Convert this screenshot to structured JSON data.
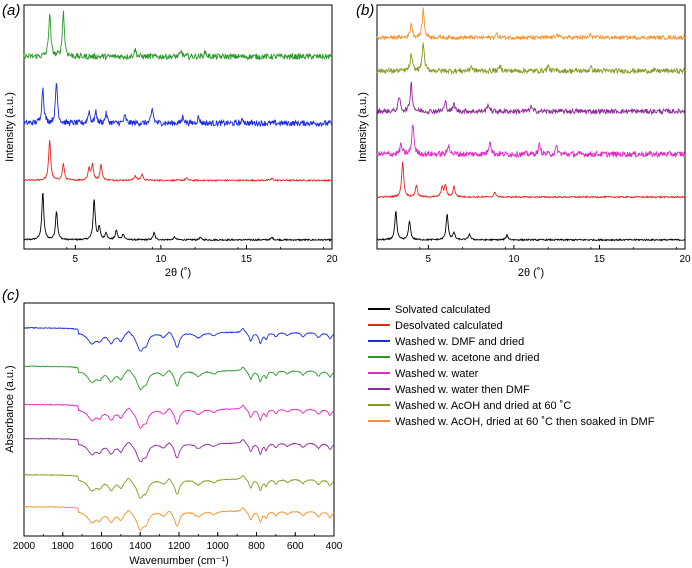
{
  "chart_data": [
    {
      "panel": "(a)",
      "type": "line",
      "title": "",
      "xlabel": "2θ (˚)",
      "ylabel": "Intensity (a.u.)",
      "xlim": [
        2,
        20
      ],
      "xticks": [
        5,
        10,
        15,
        20
      ],
      "yticks": false,
      "grid": false,
      "series": [
        {
          "name": "Solvated calculated",
          "color": "#000000",
          "baseline": 0.03,
          "noise": 0.003,
          "peaks": [
            [
              3.1,
              0.2
            ],
            [
              3.9,
              0.12
            ],
            [
              6.1,
              0.17
            ],
            [
              6.4,
              0.05
            ],
            [
              6.8,
              0.03
            ],
            [
              7.4,
              0.04
            ],
            [
              7.8,
              0.025
            ],
            [
              9.6,
              0.03
            ],
            [
              10.8,
              0.012
            ],
            [
              12.3,
              0.01
            ],
            [
              16.5,
              0.01
            ]
          ]
        },
        {
          "name": "Desolvated calculated",
          "color": "#e8251f",
          "baseline": 0.28,
          "noise": 0.003,
          "peaks": [
            [
              3.5,
              0.17
            ],
            [
              4.3,
              0.07
            ],
            [
              5.8,
              0.05
            ],
            [
              6.0,
              0.065
            ],
            [
              6.5,
              0.065
            ],
            [
              8.5,
              0.02
            ],
            [
              8.9,
              0.025
            ],
            [
              11.5,
              0.01
            ],
            [
              16.5,
              0.008
            ]
          ]
        },
        {
          "name": "Washed w. DMF and dried",
          "color": "#1a2be0",
          "baseline": 0.52,
          "noise": 0.012,
          "peaks": [
            [
              3.1,
              0.15
            ],
            [
              3.9,
              0.17
            ],
            [
              5.8,
              0.05
            ],
            [
              6.2,
              0.045
            ],
            [
              6.8,
              0.04
            ],
            [
              7.9,
              0.03
            ],
            [
              9.5,
              0.06
            ],
            [
              11.3,
              0.03
            ],
            [
              12.2,
              0.025
            ],
            [
              14.8,
              0.015
            ]
          ]
        },
        {
          "name": "Washed w. acetone and dried",
          "color": "#2b9a2b",
          "baseline": 0.8,
          "noise": 0.012,
          "peaks": [
            [
              3.5,
              0.18
            ],
            [
              4.3,
              0.19
            ],
            [
              8.5,
              0.03
            ],
            [
              11.2,
              0.02
            ],
            [
              12.6,
              0.02
            ]
          ]
        }
      ]
    },
    {
      "panel": "(b)",
      "type": "line",
      "title": "",
      "xlabel": "2θ (˚)",
      "ylabel": "Intensity (a.u.)",
      "xlim": [
        2,
        20
      ],
      "xticks": [
        5,
        10,
        15,
        20
      ],
      "yticks": false,
      "grid": false,
      "series": [
        {
          "name": "Solvated calculated",
          "color": "#000000",
          "baseline": 0.03,
          "noise": 0.003,
          "peaks": [
            [
              3.1,
              0.12
            ],
            [
              3.9,
              0.08
            ],
            [
              6.1,
              0.11
            ],
            [
              6.5,
              0.03
            ],
            [
              7.4,
              0.025
            ],
            [
              9.6,
              0.02
            ]
          ]
        },
        {
          "name": "Desolvated calculated",
          "color": "#e8251f",
          "baseline": 0.21,
          "noise": 0.003,
          "peaks": [
            [
              3.5,
              0.15
            ],
            [
              4.3,
              0.05
            ],
            [
              5.8,
              0.04
            ],
            [
              6.0,
              0.05
            ],
            [
              6.5,
              0.045
            ],
            [
              8.9,
              0.02
            ]
          ]
        },
        {
          "name": "Washed w. water",
          "color": "#e329c8",
          "baseline": 0.39,
          "noise": 0.012,
          "peaks": [
            [
              3.4,
              0.04
            ],
            [
              4.1,
              0.13
            ],
            [
              6.2,
              0.04
            ],
            [
              8.6,
              0.06
            ],
            [
              11.5,
              0.04
            ],
            [
              12.5,
              0.03
            ]
          ]
        },
        {
          "name": "Washed w. water then DMF",
          "color": "#8e2a9a",
          "baseline": 0.57,
          "noise": 0.01,
          "peaks": [
            [
              3.3,
              0.06
            ],
            [
              4.0,
              0.12
            ],
            [
              6.0,
              0.04
            ],
            [
              6.5,
              0.03
            ],
            [
              8.5,
              0.03
            ],
            [
              11.0,
              0.02
            ]
          ]
        },
        {
          "name": "Washed w. AcOH and dried at 60 ˚C",
          "color": "#8a9a1f",
          "baseline": 0.74,
          "noise": 0.01,
          "peaks": [
            [
              4.0,
              0.07
            ],
            [
              4.7,
              0.12
            ],
            [
              7.5,
              0.02
            ],
            [
              9.2,
              0.02
            ],
            [
              12.0,
              0.02
            ],
            [
              14.5,
              0.015
            ]
          ]
        },
        {
          "name": "Washed w. AcOH, dried at 60 ˚C then soaked in DMF",
          "color": "#f5922b",
          "baseline": 0.88,
          "noise": 0.008,
          "peaks": [
            [
              4.0,
              0.06
            ],
            [
              4.7,
              0.12
            ],
            [
              9.0,
              0.015
            ],
            [
              12.5,
              0.015
            ],
            [
              14.5,
              0.012
            ]
          ]
        }
      ]
    },
    {
      "panel": "(c)",
      "type": "line",
      "title": "",
      "xlabel": "Wavenumber (cm⁻¹)",
      "ylabel": "Absorbance (a.u.)",
      "xlim": [
        2000,
        400
      ],
      "xticks": [
        2000,
        1800,
        1600,
        1400,
        1200,
        1000,
        800,
        600,
        400
      ],
      "yticks": false,
      "grid": false,
      "series": [
        {
          "name": "Washed w. DMF and dried",
          "color": "#1a2be0",
          "offset": 0.94
        },
        {
          "name": "Washed w. acetone and dried",
          "color": "#2b9a2b",
          "offset": 0.76
        },
        {
          "name": "Washed w. water",
          "color": "#e329c8",
          "offset": 0.58
        },
        {
          "name": "Washed w. water then DMF",
          "color": "#8e2a9a",
          "offset": 0.42
        },
        {
          "name": "Washed w. AcOH and dried at 60 ˚C",
          "color": "#8a9a1f",
          "offset": 0.25
        },
        {
          "name": "Washed w. AcOH, dried at 60 ˚C then soaked in DMF",
          "color": "#f5922b",
          "offset": 0.1
        }
      ],
      "bands": [
        [
          1650,
          -0.05,
          25
        ],
        [
          1610,
          -0.03,
          15
        ],
        [
          1550,
          -0.045,
          18
        ],
        [
          1500,
          -0.035,
          15
        ],
        [
          1460,
          0.02,
          15
        ],
        [
          1400,
          -0.08,
          22
        ],
        [
          1370,
          -0.04,
          15
        ],
        [
          1280,
          -0.02,
          15
        ],
        [
          1250,
          0.015,
          12
        ],
        [
          1210,
          -0.07,
          15
        ],
        [
          1100,
          -0.025,
          20
        ],
        [
          1020,
          -0.015,
          15
        ],
        [
          870,
          0.02,
          10
        ],
        [
          830,
          -0.04,
          10
        ],
        [
          780,
          -0.05,
          10
        ],
        [
          750,
          -0.03,
          8
        ],
        [
          700,
          -0.02,
          10
        ],
        [
          640,
          -0.015,
          12
        ],
        [
          560,
          -0.02,
          12
        ],
        [
          480,
          -0.025,
          12
        ],
        [
          420,
          -0.03,
          12
        ]
      ]
    }
  ],
  "legend": {
    "placement": "bottom-right",
    "entries": [
      {
        "label": "Solvated calculated",
        "color": "#000000"
      },
      {
        "label": "Desolvated calculated",
        "color": "#e8251f"
      },
      {
        "label": "Washed w. DMF and dried",
        "color": "#1a2be0"
      },
      {
        "label": "Washed w. acetone and dried",
        "color": "#2b9a2b"
      },
      {
        "label": "Washed w. water",
        "color": "#e329c8"
      },
      {
        "label": "Washed w. water then DMF",
        "color": "#8e2a9a"
      },
      {
        "label": "Washed w. AcOH and dried at 60 ˚C",
        "color": "#8a9a1f"
      },
      {
        "label": "Washed w. AcOH, dried at 60 ˚C then soaked in DMF",
        "color": "#f5922b"
      }
    ]
  }
}
